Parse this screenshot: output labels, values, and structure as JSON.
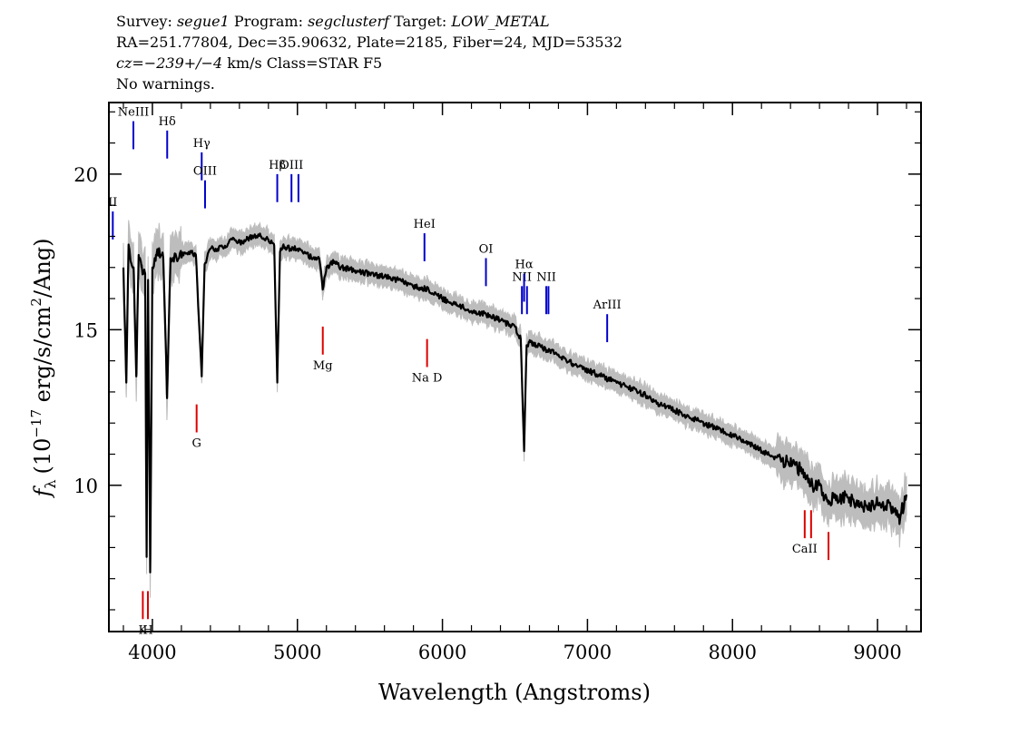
{
  "header": {
    "survey_prefix": "Survey:",
    "survey": "segue1",
    "program_prefix": "Program:",
    "program": "segclusterf",
    "target_prefix": "Target:",
    "target": "LOW_METAL",
    "coords_line": "RA=251.77804, Dec=35.90632, Plate=2185, Fiber=24, MJD=53532",
    "cz_label": "cz=",
    "cz_value": "−239+/−4",
    "cz_rest": "km/s Class=STAR F5",
    "warnings": "No warnings."
  },
  "colors": {
    "spectrum": "#000000",
    "error_band": "#bdbdbd",
    "emission_marker": "#0000cc",
    "absorption_marker": "#dd0000"
  },
  "chart_data": {
    "type": "line",
    "title": "",
    "xlabel": "Wavelength (Angstroms)",
    "ylabel_text": "(10",
    "ylabel_exp": "−17",
    "ylabel_rest": " erg/s/cm",
    "ylabel_exp2": "2",
    "ylabel_end": "/Ang)",
    "ylabel_symbol": "f",
    "ylabel_sub": "λ",
    "xlim": [
      3700,
      9300
    ],
    "ylim": [
      5.3,
      22.3
    ],
    "x_ticks": [
      4000,
      5000,
      6000,
      7000,
      8000,
      9000
    ],
    "x_tick_labels": [
      "4000",
      "5000",
      "6000",
      "7000",
      "8000",
      "9000"
    ],
    "x_minor_step": 200,
    "y_ticks": [
      10,
      15,
      20
    ],
    "y_tick_labels": [
      "10",
      "15",
      "20"
    ],
    "y_minor_step": 1,
    "grid": false,
    "series": [
      {
        "x": [
          3800,
          3820,
          3835,
          3850,
          3870,
          3889,
          3905,
          3925,
          3950,
          3960,
          3970,
          3985,
          4000,
          4025,
          4050,
          4075,
          4101,
          4125,
          4150,
          4200,
          4250,
          4300,
          4340,
          4360,
          4400,
          4450,
          4500,
          4550,
          4600,
          4650,
          4700,
          4750,
          4800,
          4840,
          4861,
          4880,
          4900,
          4950,
          5000,
          5050,
          5100,
          5150,
          5175,
          5200,
          5250,
          5300,
          5400,
          5500,
          5600,
          5700,
          5800,
          5890,
          5950,
          6000,
          6100,
          6200,
          6300,
          6400,
          6500,
          6540,
          6563,
          6580,
          6600,
          6700,
          6800,
          6900,
          7000,
          7100,
          7200,
          7300,
          7400,
          7500,
          7600,
          7700,
          7800,
          7900,
          8000,
          8100,
          8200,
          8300,
          8400,
          8498,
          8542,
          8600,
          8662,
          8700,
          8800,
          8900,
          9000,
          9100,
          9150,
          9200
        ],
        "y": [
          17.0,
          13.3,
          17.6,
          17.2,
          17.0,
          13.5,
          17.4,
          17.0,
          16.8,
          7.7,
          16.6,
          7.2,
          17.0,
          17.4,
          17.5,
          17.3,
          12.8,
          17.3,
          17.3,
          17.4,
          17.5,
          17.4,
          13.5,
          17.1,
          17.6,
          17.6,
          17.7,
          17.9,
          17.8,
          17.9,
          18.0,
          18.0,
          17.9,
          17.7,
          13.3,
          17.5,
          17.7,
          17.6,
          17.6,
          17.5,
          17.3,
          17.3,
          16.3,
          17.0,
          17.2,
          17.0,
          16.9,
          16.8,
          16.7,
          16.6,
          16.4,
          16.3,
          16.2,
          16.0,
          15.8,
          15.6,
          15.5,
          15.3,
          15.1,
          14.7,
          11.1,
          14.5,
          14.6,
          14.4,
          14.2,
          13.9,
          13.7,
          13.5,
          13.3,
          13.1,
          12.9,
          12.6,
          12.4,
          12.2,
          12.0,
          11.8,
          11.6,
          11.4,
          11.1,
          10.9,
          10.7,
          10.4,
          10.0,
          10.0,
          9.4,
          9.6,
          9.6,
          9.3,
          9.4,
          9.3,
          8.9,
          9.7
        ]
      }
    ],
    "emission_lines": [
      {
        "label": "II",
        "x": 3727,
        "y_bottom": 17.9,
        "y_top": 18.8
      },
      {
        "label": "NeIII",
        "x": 3869,
        "y_bottom": 20.8,
        "y_top": 21.7
      },
      {
        "label": "Hδ",
        "x": 4102,
        "y_bottom": 20.5,
        "y_top": 21.4
      },
      {
        "label": "Hγ",
        "x": 4340,
        "y_bottom": 19.8,
        "y_top": 20.7
      },
      {
        "label": "OIII",
        "x": 4363,
        "y_bottom": 18.9,
        "y_top": 19.8
      },
      {
        "label": "Hβ",
        "x": 4861,
        "y_bottom": 19.1,
        "y_top": 20.0
      },
      {
        "label": "OIII",
        "x": 4959,
        "y_bottom": 19.1,
        "y_top": 20.0
      },
      {
        "label": "",
        "x": 5007,
        "y_bottom": 19.1,
        "y_top": 20.0
      },
      {
        "label": "HeI",
        "x": 5876,
        "y_bottom": 17.2,
        "y_top": 18.1
      },
      {
        "label": "OI",
        "x": 6300,
        "y_bottom": 16.4,
        "y_top": 17.3
      },
      {
        "label": "NII",
        "x": 6548,
        "y_bottom": 15.5,
        "y_top": 16.4
      },
      {
        "label": "Hα",
        "x": 6563,
        "y_bottom": 15.9,
        "y_top": 16.8
      },
      {
        "label": "",
        "x": 6583,
        "y_bottom": 15.5,
        "y_top": 16.4
      },
      {
        "label": "NII",
        "x": 6716,
        "y_bottom": 15.5,
        "y_top": 16.4
      },
      {
        "label": "",
        "x": 6731,
        "y_bottom": 15.5,
        "y_top": 16.4
      },
      {
        "label": "ArIII",
        "x": 7136,
        "y_bottom": 14.6,
        "y_top": 15.5
      }
    ],
    "absorption_lines": [
      {
        "label": "K",
        "x": 3934,
        "y_bottom": 5.7,
        "y_top": 6.6
      },
      {
        "label": "H",
        "x": 3969,
        "y_bottom": 5.7,
        "y_top": 6.6
      },
      {
        "label": "G",
        "x": 4305,
        "y_bottom": 11.7,
        "y_top": 12.6
      },
      {
        "label": "Mg",
        "x": 5175,
        "y_bottom": 14.2,
        "y_top": 15.1
      },
      {
        "label": "Na  D",
        "x": 5894,
        "y_bottom": 13.8,
        "y_top": 14.7
      },
      {
        "label": "CaII",
        "x": 8498,
        "y_bottom": 8.3,
        "y_top": 9.2
      },
      {
        "label": "",
        "x": 8542,
        "y_bottom": 8.3,
        "y_top": 9.2
      },
      {
        "label": "",
        "x": 8662,
        "y_bottom": 7.6,
        "y_top": 8.5
      }
    ]
  }
}
